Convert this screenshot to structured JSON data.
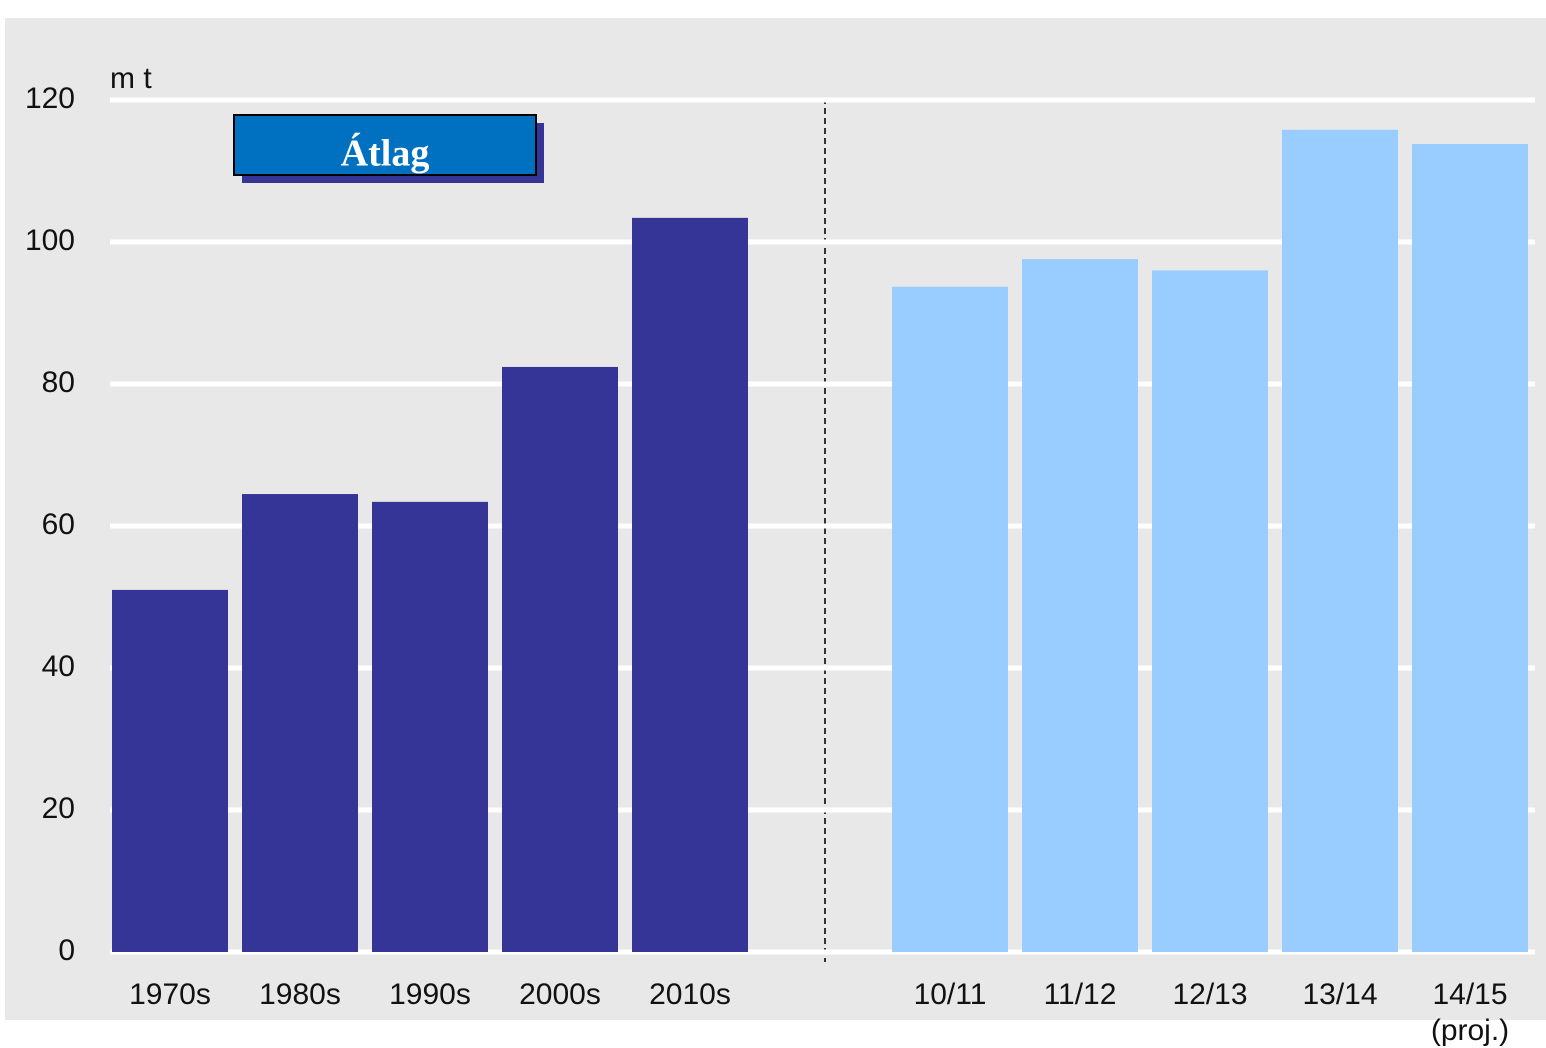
{
  "chart_data": {
    "type": "bar",
    "y_unit": "m t",
    "annotation": "Átlag",
    "categories": [
      "1970s",
      "1980s",
      "1990s",
      "2000s",
      "2010s",
      "10/11",
      "11/12",
      "12/13",
      "13/14",
      "14/15\n(proj.)"
    ],
    "values": [
      51,
      64.5,
      63.4,
      82.4,
      103.4,
      93.7,
      97.6,
      96,
      115.8,
      113.8
    ],
    "colors": [
      "#353598",
      "#353598",
      "#353598",
      "#353598",
      "#353598",
      "#99ccff",
      "#99ccff",
      "#99ccff",
      "#99ccff",
      "#99ccff"
    ],
    "ylim": [
      0,
      120
    ],
    "yticks": [
      0,
      20,
      40,
      60,
      80,
      100,
      120
    ],
    "grid": true
  }
}
